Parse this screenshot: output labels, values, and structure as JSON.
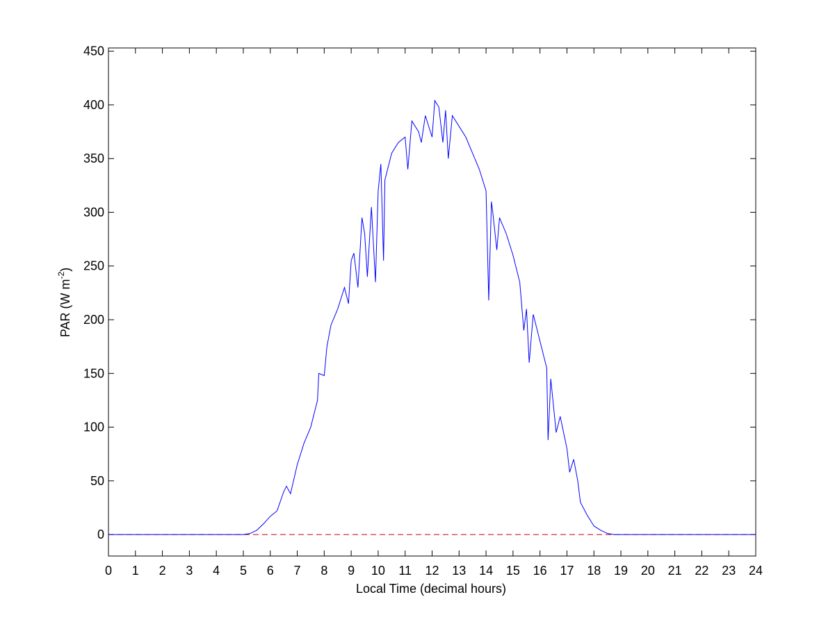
{
  "chart_data": {
    "type": "line",
    "xlabel": "Local Time (decimal hours)",
    "ylabel": {
      "text": "PAR (W m",
      "sup": "-2",
      "end": ")"
    },
    "xlim": [
      0,
      24
    ],
    "ylim": [
      -20,
      453
    ],
    "xticks": [
      0,
      1,
      2,
      3,
      4,
      5,
      6,
      7,
      8,
      9,
      10,
      11,
      12,
      13,
      14,
      15,
      16,
      17,
      18,
      19,
      20,
      21,
      22,
      23,
      24
    ],
    "yticks": [
      0,
      50,
      100,
      150,
      200,
      250,
      300,
      350,
      400,
      450
    ],
    "grid": false,
    "series": [
      {
        "color": "#0000ff",
        "dash": false,
        "x": [
          0,
          5,
          5.25,
          5.5,
          5.75,
          6,
          6.25,
          6.5,
          6.6,
          6.75,
          7,
          7.25,
          7.5,
          7.75,
          7.8,
          8,
          8.1,
          8.25,
          8.5,
          8.75,
          8.9,
          9,
          9.1,
          9.25,
          9.4,
          9.5,
          9.6,
          9.75,
          9.9,
          10,
          10.1,
          10.2,
          10.25,
          10.5,
          10.75,
          11,
          11.1,
          11.25,
          11.5,
          11.6,
          11.75,
          12,
          12.1,
          12.25,
          12.4,
          12.5,
          12.6,
          12.75,
          13,
          13.25,
          13.5,
          13.75,
          14,
          14.1,
          14.2,
          14.25,
          14.4,
          14.5,
          14.75,
          15,
          15.25,
          15.4,
          15.5,
          15.6,
          15.75,
          16,
          16.25,
          16.3,
          16.4,
          16.5,
          16.6,
          16.75,
          17,
          17.1,
          17.25,
          17.4,
          17.5,
          17.75,
          18,
          18.25,
          18.5,
          18.75,
          24
        ],
        "values": [
          0,
          0,
          1,
          4,
          10,
          17,
          22,
          40,
          45,
          38,
          65,
          85,
          100,
          125,
          150,
          148,
          175,
          195,
          210,
          230,
          215,
          255,
          262,
          230,
          295,
          280,
          240,
          305,
          235,
          320,
          345,
          255,
          330,
          355,
          365,
          370,
          340,
          385,
          375,
          365,
          390,
          370,
          404,
          398,
          365,
          395,
          350,
          390,
          380,
          370,
          355,
          340,
          320,
          218,
          310,
          300,
          265,
          295,
          280,
          260,
          235,
          190,
          210,
          160,
          205,
          180,
          155,
          88,
          145,
          120,
          95,
          110,
          80,
          58,
          70,
          50,
          30,
          18,
          8,
          4,
          1,
          0,
          0
        ]
      },
      {
        "color": "#cc0000",
        "dash": true,
        "x": [
          0,
          24
        ],
        "values": [
          0,
          0
        ]
      }
    ]
  }
}
